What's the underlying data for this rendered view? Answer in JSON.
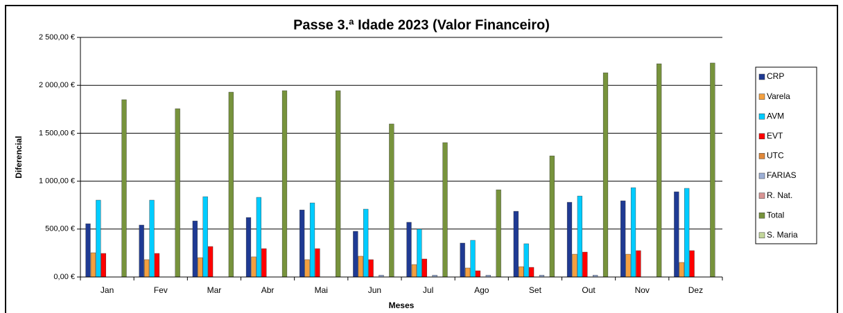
{
  "chart_data": {
    "type": "bar",
    "title": "Passe 3.ª Idade 2023 (Valor Financeiro)",
    "x_label": "Meses",
    "y_label": "Diferencial",
    "categories": [
      "Jan",
      "Fev",
      "Mar",
      "Abr",
      "Mai",
      "Jun",
      "Jul",
      "Ago",
      "Set",
      "Out",
      "Nov",
      "Dez"
    ],
    "series": [
      {
        "name": "CRP",
        "color": "#1f3a93",
        "values": [
          556,
          542,
          585,
          621,
          700,
          477,
          571,
          354,
          686,
          780,
          795,
          889
        ]
      },
      {
        "name": "Varela",
        "color": "#f4a040",
        "values": [
          253,
          181,
          202,
          210,
          181,
          217,
          130,
          94,
          108,
          238,
          238,
          152
        ]
      },
      {
        "name": "AVM",
        "color": "#00ccff",
        "values": [
          802,
          802,
          838,
          831,
          773,
          708,
          499,
          383,
          347,
          845,
          932,
          925
        ]
      },
      {
        "name": "EVT",
        "color": "#ff0000",
        "values": [
          246,
          246,
          318,
          296,
          296,
          181,
          188,
          65,
          101,
          260,
          275,
          275
        ]
      },
      {
        "name": "UTC",
        "color": "#e0883a",
        "values": [
          0,
          0,
          0,
          0,
          0,
          0,
          0,
          0,
          0,
          0,
          0,
          0
        ]
      },
      {
        "name": "FARIAS",
        "color": "#9db0d6",
        "values": [
          0,
          0,
          0,
          0,
          0,
          20,
          20,
          20,
          20,
          20,
          0,
          0
        ]
      },
      {
        "name": "R. Nat.",
        "color": "#d99594",
        "values": [
          0,
          0,
          0,
          0,
          0,
          0,
          0,
          0,
          0,
          0,
          0,
          0
        ]
      },
      {
        "name": "Total",
        "color": "#77933c",
        "values": [
          1850,
          1756,
          1929,
          1944,
          1944,
          1597,
          1402,
          910,
          1264,
          2131,
          2225,
          2233
        ]
      },
      {
        "name": "S. Maria",
        "color": "#c3d69b",
        "values": [
          0,
          0,
          0,
          0,
          0,
          0,
          0,
          0,
          0,
          0,
          0,
          0
        ]
      }
    ],
    "ylim": [
      0,
      2500
    ],
    "yticks": [
      {
        "value": 0,
        "label": "0,00 €"
      },
      {
        "value": 500,
        "label": "500,00 €"
      },
      {
        "value": 1000,
        "label": "1 000,00 €"
      },
      {
        "value": 1500,
        "label": "1 500,00 €"
      },
      {
        "value": 2000,
        "label": "2 000,00 €"
      },
      {
        "value": 2500,
        "label": "2 500,00 €"
      }
    ],
    "grid": true,
    "legend": "right"
  }
}
